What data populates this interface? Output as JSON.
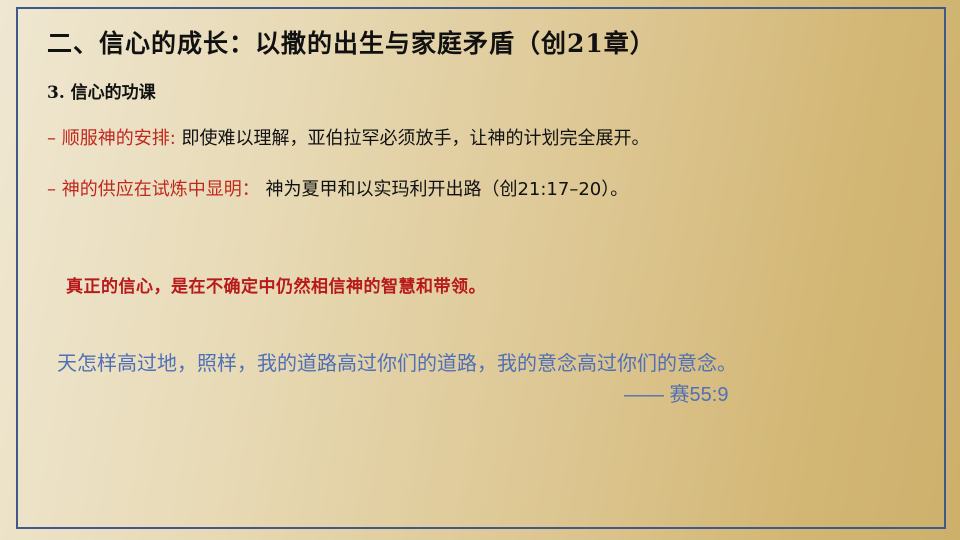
{
  "slide": {
    "title": "二、信心的成长：以撒的出生与家庭矛盾（创21章）",
    "subtitle": "3. 信心的功课",
    "points": [
      {
        "label": "– 顺服神的安排:",
        "text": " 即使难以理解，亚伯拉罕必须放手，让神的计划完全展开。"
      },
      {
        "label": "– 神的供应在试炼中显明：",
        "text": " 神为夏甲和以实玛利开出路（创21:17–20）。"
      }
    ],
    "highlight": "真正的信心，是在不确定中仍然相信神的智慧和带领。",
    "verse": "天怎样高过地，照样，我的道路高过你们的道路，我的意念高过你们的意念。",
    "reference": "—— 赛55:9"
  },
  "colors": {
    "frame": "#3f5a8a",
    "label_red": "#c0281e",
    "highlight_red": "#b8191a",
    "verse_blue": "#4f70b6"
  }
}
